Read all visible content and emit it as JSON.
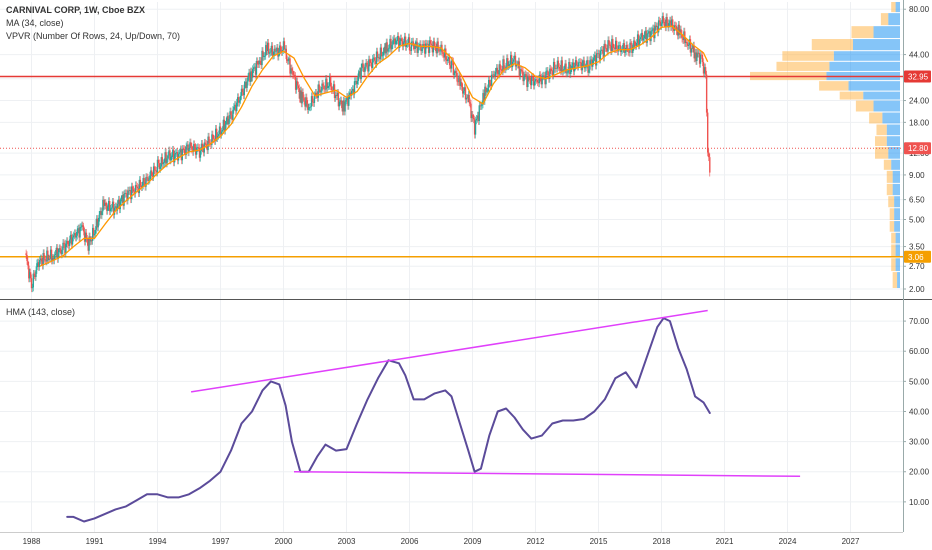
{
  "legend": {
    "symbol_line": "CARNIVAL CORP, 1W, Cboe BZX",
    "ma_line": "MA (34, close)",
    "vpvr_line": "VPVR (Number Of Rows, 24, Up/Down, 70)",
    "hma_line": "HMA (143, close)"
  },
  "colors": {
    "candle_up": "#26a69a",
    "candle_down": "#ef5350",
    "ma": "#ff9800",
    "hline_high": "#e53935",
    "hline_low": "#f59f00",
    "hline_mid": "#ef5350",
    "vpvr_up": "#2196f3",
    "vpvr_down": "#ffb74d",
    "hma": "#5b4b9a",
    "trendline": "#e040fb"
  },
  "chart_data": [
    {
      "type": "line",
      "panel": "price",
      "y_scale": "log",
      "ylim": [
        1.8,
        88
      ],
      "y_ticks": [
        80.0,
        44.0,
        32.0,
        24.0,
        18.0,
        12.0,
        9.0,
        6.5,
        5.0,
        3.5,
        2.7,
        2.0
      ],
      "x_ticks": [
        1988,
        1991,
        1994,
        1997,
        2000,
        2003,
        2006,
        2009,
        2012,
        2015,
        2018,
        2021,
        2024,
        2027
      ],
      "xlim": [
        1986.5,
        2029.5
      ],
      "series": [
        {
          "role": "price",
          "x": [
            1987.7,
            1988.0,
            1988.3,
            1988.6,
            1989.0,
            1989.5,
            1990.0,
            1990.4,
            1990.7,
            1991.0,
            1991.4,
            1992.0,
            1992.5,
            1993.0,
            1993.5,
            1994.0,
            1994.5,
            1995.0,
            1995.5,
            1996.0,
            1996.5,
            1997.0,
            1997.5,
            1998.0,
            1998.4,
            1998.8,
            1999.2,
            1999.6,
            2000.0,
            2000.4,
            2000.8,
            2001.2,
            2001.7,
            2002.2,
            2002.8,
            2003.2,
            2003.7,
            2004.2,
            2004.8,
            2005.3,
            2006.0,
            2006.5,
            2007.0,
            2007.5,
            2008.0,
            2008.4,
            2008.8,
            2009.1,
            2009.5,
            2010.0,
            2010.5,
            2011.0,
            2011.5,
            2012.0,
            2012.5,
            2013.0,
            2013.5,
            2014.0,
            2014.5,
            2015.0,
            2015.5,
            2016.0,
            2016.5,
            2017.0,
            2017.5,
            2018.0,
            2018.4,
            2018.8,
            2019.2,
            2019.6,
            2019.9,
            2020.1,
            2020.2,
            2020.3
          ],
          "values": [
            3.2,
            2.1,
            2.8,
            3.0,
            3.1,
            3.4,
            4.0,
            4.5,
            3.6,
            4.3,
            6.0,
            5.8,
            7.0,
            7.5,
            8.5,
            10.0,
            11.5,
            11.8,
            13.0,
            12.5,
            14.0,
            16.0,
            20.0,
            26.0,
            34.0,
            39.0,
            47.0,
            45.0,
            48.0,
            35.0,
            26.0,
            22.0,
            28.0,
            30.0,
            22.0,
            26.0,
            36.0,
            40.0,
            46.0,
            53.0,
            51.0,
            48.0,
            50.0,
            47.0,
            38.0,
            30.0,
            24.0,
            17.0,
            25.0,
            34.0,
            38.0,
            41.0,
            32.0,
            31.0,
            33.0,
            38.0,
            36.0,
            39.0,
            38.0,
            44.0,
            50.0,
            48.0,
            47.0,
            55.0,
            58.0,
            68.0,
            66.0,
            60.0,
            52.0,
            45.0,
            42.0,
            33.0,
            12.8,
            9.5
          ]
        },
        {
          "role": "ma",
          "name": "MA (34, close)",
          "x": [
            1988.4,
            1989.0,
            1989.5,
            1990.0,
            1990.5,
            1991.0,
            1991.5,
            1992.0,
            1992.5,
            1993.0,
            1993.5,
            1994.0,
            1994.5,
            1995.0,
            1995.5,
            1996.0,
            1996.5,
            1997.0,
            1997.5,
            1998.0,
            1998.5,
            1999.0,
            1999.5,
            2000.0,
            2000.5,
            2001.0,
            2001.5,
            2002.0,
            2002.5,
            2003.0,
            2003.5,
            2004.0,
            2004.5,
            2005.0,
            2005.5,
            2006.0,
            2006.5,
            2007.0,
            2007.5,
            2008.0,
            2008.5,
            2009.0,
            2009.5,
            2010.0,
            2010.5,
            2011.0,
            2011.5,
            2012.0,
            2012.5,
            2013.0,
            2013.5,
            2014.0,
            2014.5,
            2015.0,
            2015.5,
            2016.0,
            2016.5,
            2017.0,
            2017.5,
            2018.0,
            2018.5,
            2019.0,
            2019.5,
            2020.0,
            2020.2
          ],
          "values": [
            2.7,
            2.9,
            3.1,
            3.5,
            3.9,
            3.9,
            4.7,
            5.6,
            6.4,
            7.2,
            8.0,
            9.2,
            10.4,
            11.3,
            12.2,
            12.5,
            13.5,
            15.0,
            17.5,
            22.0,
            29.0,
            36.0,
            43.0,
            46.0,
            42.0,
            32.0,
            25.5,
            26.5,
            27.5,
            25.0,
            27.0,
            33.0,
            39.0,
            43.0,
            49.0,
            51.0,
            49.0,
            49.0,
            48.0,
            42.0,
            33.0,
            25.0,
            23.0,
            30.0,
            36.0,
            39.0,
            37.0,
            33.0,
            32.0,
            34.0,
            36.0,
            37.0,
            38.0,
            40.0,
            45.0,
            47.0,
            47.0,
            50.0,
            55.0,
            63.0,
            64.0,
            57.0,
            50.0,
            45.0,
            40.0
          ]
        }
      ],
      "horizontal_lines": [
        {
          "value": 32.95,
          "label": "32.95",
          "style": "solid",
          "role": "high"
        },
        {
          "value": 12.8,
          "label": "12.80",
          "style": "dotted",
          "role": "mid"
        },
        {
          "value": 3.06,
          "label": "3.06",
          "style": "solid",
          "role": "low"
        }
      ],
      "volume_profile": {
        "type": "bar",
        "rows": [
          {
            "price_low": 76.0,
            "price_high": 88.0,
            "up": 0.3,
            "down": 0.3
          },
          {
            "price_low": 64.0,
            "price_high": 76.0,
            "up": 0.8,
            "down": 0.5
          },
          {
            "price_low": 54.0,
            "price_high": 64.0,
            "up": 1.8,
            "down": 1.5
          },
          {
            "price_low": 46.0,
            "price_high": 54.0,
            "up": 3.2,
            "down": 2.8
          },
          {
            "price_low": 40.0,
            "price_high": 46.0,
            "up": 4.5,
            "down": 3.5
          },
          {
            "price_low": 35.0,
            "price_high": 40.0,
            "up": 4.8,
            "down": 3.6
          },
          {
            "price_low": 31.0,
            "price_high": 35.0,
            "up": 5.0,
            "down": 5.2
          },
          {
            "price_low": 27.0,
            "price_high": 31.0,
            "up": 3.5,
            "down": 2.0
          },
          {
            "price_low": 24.0,
            "price_high": 27.0,
            "up": 2.5,
            "down": 1.6
          },
          {
            "price_low": 20.5,
            "price_high": 24.0,
            "up": 1.8,
            "down": 1.2
          },
          {
            "price_low": 17.5,
            "price_high": 20.5,
            "up": 1.2,
            "down": 0.9
          },
          {
            "price_low": 15.0,
            "price_high": 17.5,
            "up": 0.9,
            "down": 0.7
          },
          {
            "price_low": 13.0,
            "price_high": 15.0,
            "up": 0.9,
            "down": 0.8
          },
          {
            "price_low": 11.0,
            "price_high": 13.0,
            "up": 0.8,
            "down": 0.9
          },
          {
            "price_low": 9.5,
            "price_high": 11.0,
            "up": 0.6,
            "down": 0.5
          },
          {
            "price_low": 8.0,
            "price_high": 9.5,
            "up": 0.5,
            "down": 0.4
          },
          {
            "price_low": 6.8,
            "price_high": 8.0,
            "up": 0.5,
            "down": 0.4
          },
          {
            "price_low": 5.8,
            "price_high": 6.8,
            "up": 0.4,
            "down": 0.4
          },
          {
            "price_low": 4.9,
            "price_high": 5.8,
            "up": 0.4,
            "down": 0.3
          },
          {
            "price_low": 4.2,
            "price_high": 4.9,
            "up": 0.4,
            "down": 0.3
          },
          {
            "price_low": 3.6,
            "price_high": 4.2,
            "up": 0.3,
            "down": 0.3
          },
          {
            "price_low": 3.0,
            "price_high": 3.6,
            "up": 0.3,
            "down": 0.3
          },
          {
            "price_low": 2.5,
            "price_high": 3.0,
            "up": 0.3,
            "down": 0.3
          },
          {
            "price_low": 2.0,
            "price_high": 2.5,
            "up": 0.2,
            "down": 0.3
          }
        ]
      }
    },
    {
      "type": "line",
      "panel": "indicator",
      "ylim": [
        0,
        77
      ],
      "y_ticks": [
        70.0,
        60.0,
        50.0,
        40.0,
        30.0,
        20.0,
        10.0
      ],
      "xlim": [
        1986.5,
        2029.5
      ],
      "series": [
        {
          "role": "hma",
          "name": "HMA (143, close)",
          "x": [
            1989.7,
            1990.0,
            1990.5,
            1991.0,
            1991.5,
            1992.0,
            1992.5,
            1993.0,
            1993.5,
            1994.0,
            1994.5,
            1995.0,
            1995.5,
            1996.0,
            1996.5,
            1997.0,
            1997.5,
            1998.0,
            1998.5,
            1999.0,
            1999.4,
            1999.8,
            2000.1,
            2000.4,
            2000.8,
            2001.2,
            2001.6,
            2002.0,
            2002.5,
            2003.0,
            2003.5,
            2004.0,
            2004.5,
            2005.0,
            2005.5,
            2005.8,
            2006.2,
            2006.7,
            2007.2,
            2007.7,
            2008.0,
            2008.4,
            2008.8,
            2009.1,
            2009.4,
            2009.8,
            2010.2,
            2010.6,
            2011.0,
            2011.4,
            2011.8,
            2012.3,
            2012.8,
            2013.3,
            2013.8,
            2014.3,
            2014.8,
            2015.3,
            2015.8,
            2016.3,
            2016.8,
            2017.3,
            2017.8,
            2018.1,
            2018.4,
            2018.8,
            2019.2,
            2019.6,
            2020.0,
            2020.3
          ],
          "values": [
            5.0,
            5.0,
            3.5,
            4.5,
            6.0,
            7.5,
            8.5,
            10.5,
            12.5,
            12.5,
            11.5,
            11.5,
            12.5,
            14.5,
            17.0,
            20.0,
            27.0,
            36.0,
            40.0,
            47.0,
            50.0,
            49.0,
            42.0,
            30.0,
            20.0,
            20.0,
            25.0,
            29.0,
            27.0,
            27.5,
            36.0,
            44.0,
            51.0,
            57.0,
            56.0,
            52.0,
            44.0,
            44.0,
            46.0,
            47.0,
            45.0,
            36.0,
            27.0,
            20.0,
            21.0,
            32.0,
            40.0,
            41.0,
            38.0,
            34.0,
            31.0,
            32.0,
            36.0,
            37.0,
            37.0,
            37.5,
            40.0,
            44.0,
            51.0,
            53.0,
            48.0,
            58.0,
            68.0,
            71.0,
            70.0,
            61.0,
            54.0,
            45.0,
            43.0,
            39.5
          ]
        },
        {
          "role": "upper-trendline",
          "x": [
            1995.6,
            2020.2
          ],
          "values": [
            46.5,
            73.5
          ]
        },
        {
          "role": "lower-trendline",
          "x": [
            2000.5,
            2024.6
          ],
          "values": [
            20.0,
            18.5
          ]
        }
      ]
    }
  ]
}
